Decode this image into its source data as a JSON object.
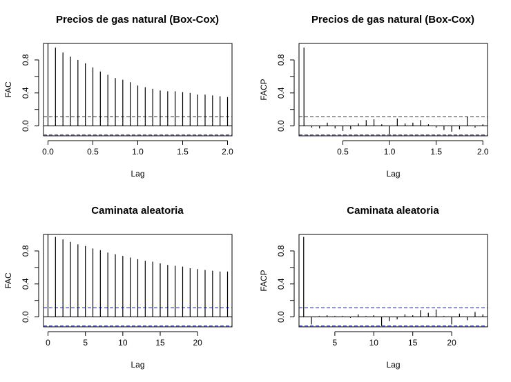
{
  "chart_data": [
    {
      "type": "acf",
      "title": "Precios de gas natural (Box-Cox)",
      "xlabel": "Lag",
      "ylabel": "FAC",
      "xlim": [
        -0.05,
        2.05
      ],
      "ylim": [
        -0.12,
        1.0
      ],
      "xticks": [
        "0.0",
        "0.5",
        "1.0",
        "1.5",
        "2.0"
      ],
      "xtick_values": [
        0,
        0.5,
        1.0,
        1.5,
        2.0
      ],
      "yticks": [
        "0.0",
        "0.4",
        "0.8"
      ],
      "ytick_values": [
        0,
        0.4,
        0.8
      ],
      "ci": 0.11,
      "ci_color": "#1a1aa6",
      "lags": [
        0,
        0.0833,
        0.1667,
        0.25,
        0.3333,
        0.4167,
        0.5,
        0.5833,
        0.6667,
        0.75,
        0.8333,
        0.9167,
        1.0,
        1.0833,
        1.1667,
        1.25,
        1.3333,
        1.4167,
        1.5,
        1.5833,
        1.6667,
        1.75,
        1.8333,
        1.9167,
        2.0
      ],
      "values": [
        1.0,
        0.95,
        0.89,
        0.84,
        0.8,
        0.76,
        0.71,
        0.66,
        0.62,
        0.58,
        0.56,
        0.53,
        0.49,
        0.47,
        0.45,
        0.43,
        0.42,
        0.42,
        0.41,
        0.4,
        0.38,
        0.38,
        0.37,
        0.36,
        0.35
      ]
    },
    {
      "type": "pacf",
      "title": "Precios de gas natural (Box-Cox)",
      "xlabel": "Lag",
      "ylabel": "FACP",
      "xlim": [
        0.03,
        2.05
      ],
      "ylim": [
        -0.12,
        1.0
      ],
      "xticks": [
        "0.5",
        "1.0",
        "1.5",
        "2.0"
      ],
      "xtick_values": [
        0.5,
        1.0,
        1.5,
        2.0
      ],
      "yticks": [
        "0.0",
        "0.4",
        "0.8"
      ],
      "ytick_values": [
        0,
        0.4,
        0.8
      ],
      "ci": 0.11,
      "ci_color": "#1a1aa6",
      "lags": [
        0.0833,
        0.1667,
        0.25,
        0.3333,
        0.4167,
        0.5,
        0.5833,
        0.6667,
        0.75,
        0.8333,
        0.9167,
        1.0,
        1.0833,
        1.1667,
        1.25,
        1.3333,
        1.4167,
        1.5,
        1.5833,
        1.6667,
        1.75,
        1.8333,
        1.9167,
        2.0
      ],
      "values": [
        0.95,
        -0.02,
        -0.03,
        0.04,
        -0.03,
        -0.06,
        -0.04,
        0.03,
        0.07,
        0.08,
        0.02,
        -0.1,
        0.09,
        0.03,
        0.04,
        0.07,
        0.02,
        -0.02,
        -0.05,
        -0.07,
        -0.04,
        0.11,
        -0.02,
        0.02
      ]
    },
    {
      "type": "acf",
      "title": "Caminata aleatoria",
      "xlabel": "Lag",
      "ylabel": "FAC",
      "xlim": [
        -0.6,
        24.6
      ],
      "ylim": [
        -0.12,
        1.0
      ],
      "xticks": [
        "0",
        "5",
        "10",
        "15",
        "20"
      ],
      "xtick_values": [
        0,
        5,
        10,
        15,
        20
      ],
      "yticks": [
        "0.0",
        "0.4",
        "0.8"
      ],
      "ytick_values": [
        0,
        0.4,
        0.8
      ],
      "ci": 0.11,
      "ci_color": "#1a1aa6",
      "lags": [
        0,
        1,
        2,
        3,
        4,
        5,
        6,
        7,
        8,
        9,
        10,
        11,
        12,
        13,
        14,
        15,
        16,
        17,
        18,
        19,
        20,
        21,
        22,
        23,
        24
      ],
      "values": [
        1.0,
        0.97,
        0.94,
        0.91,
        0.88,
        0.86,
        0.83,
        0.81,
        0.78,
        0.76,
        0.74,
        0.72,
        0.7,
        0.68,
        0.67,
        0.65,
        0.63,
        0.62,
        0.61,
        0.59,
        0.58,
        0.57,
        0.56,
        0.55,
        0.55
      ]
    },
    {
      "type": "pacf",
      "title": "Caminata aleatoria",
      "xlabel": "Lag",
      "ylabel": "FACP",
      "xlim": [
        0.4,
        24.6
      ],
      "ylim": [
        -0.12,
        1.0
      ],
      "xticks": [
        "5",
        "10",
        "15",
        "20"
      ],
      "xtick_values": [
        5,
        10,
        15,
        20
      ],
      "yticks": [
        "0.0",
        "0.4",
        "0.8"
      ],
      "ytick_values": [
        0,
        0.4,
        0.8
      ],
      "ci": 0.11,
      "ci_color": "#1a1aa6",
      "lags": [
        1,
        2,
        3,
        4,
        5,
        6,
        7,
        8,
        9,
        10,
        11,
        12,
        13,
        14,
        15,
        16,
        17,
        18,
        19,
        20,
        21,
        22,
        23,
        24
      ],
      "values": [
        0.97,
        -0.09,
        0.01,
        0.02,
        0.01,
        0.01,
        -0.01,
        0.03,
        0.01,
        0.02,
        -0.11,
        -0.05,
        -0.03,
        0.03,
        0.02,
        0.08,
        0.05,
        0.09,
        0.01,
        -0.09,
        0.04,
        -0.04,
        0.06,
        0.03
      ]
    }
  ]
}
